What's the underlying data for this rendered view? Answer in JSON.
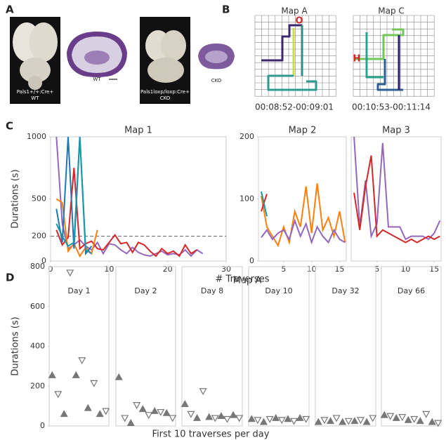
{
  "panel_labels": [
    "A",
    "B",
    "C",
    "D"
  ],
  "panel_a": {
    "brain1_label": "Pals1+/+:Cre+",
    "brain1_genotype": "WT",
    "section1_label": "WT",
    "brain2_label": "Pals1loxp/loxp:Cre+",
    "brain2_genotype": "CKO",
    "section2_label": "CKO"
  },
  "panel_b": {
    "mazes": [
      {
        "title": "Map A",
        "marker": "O",
        "time": "00:08:52-00:09:01"
      },
      {
        "title": "Map C",
        "marker": "H",
        "time": "00:10:53-00:11:14"
      }
    ]
  },
  "chart_data": [
    {
      "type": "line",
      "title": "Map 1",
      "xlabel": "# Traverses",
      "ylabel": "Durations (s)",
      "xlim": [
        0,
        30
      ],
      "xticks": [
        0,
        10,
        20,
        30
      ],
      "ylim": [
        0,
        1000
      ],
      "yticks": [
        0,
        200,
        500,
        1000
      ],
      "reference_line": 200,
      "series": [
        {
          "color": "#9467bd",
          "x": [
            1,
            2,
            3,
            4,
            5,
            6,
            7,
            8,
            9,
            10,
            11,
            12,
            13,
            14,
            15,
            16,
            17,
            18,
            19,
            20,
            21,
            22,
            23,
            24,
            25,
            26
          ],
          "values": [
            1000,
            300,
            100,
            130,
            170,
            120,
            90,
            150,
            60,
            140,
            130,
            90,
            60,
            110,
            70,
            50,
            40,
            60,
            80,
            50,
            60,
            50,
            90,
            40,
            90,
            60
          ]
        },
        {
          "color": "#d62728",
          "x": [
            1,
            2,
            3,
            4,
            5,
            6,
            7,
            8,
            9,
            10,
            11,
            12,
            13,
            14,
            15,
            16,
            17,
            18,
            19,
            20,
            21,
            22,
            23,
            24,
            25
          ],
          "values": [
            250,
            130,
            190,
            750,
            100,
            140,
            160,
            100,
            90,
            150,
            210,
            140,
            150,
            70,
            150,
            130,
            80,
            40,
            100,
            60,
            80,
            40,
            130,
            60,
            90
          ]
        },
        {
          "color": "#ff7f0e",
          "x": [
            1,
            2,
            3,
            4,
            5,
            6,
            7,
            8
          ],
          "values": [
            500,
            470,
            80,
            140,
            40,
            110,
            60,
            250
          ]
        },
        {
          "color": "#1f77b4",
          "x": [
            1,
            2,
            3,
            4,
            5,
            6,
            7
          ],
          "values": [
            420,
            150,
            1000,
            100,
            1000,
            60,
            120
          ]
        },
        {
          "color": "#1a98a8",
          "x": [
            1,
            2,
            3,
            4,
            5,
            6,
            7
          ],
          "values": [
            300,
            200,
            120,
            150,
            1000,
            90,
            60
          ]
        }
      ]
    },
    {
      "type": "line",
      "title": "Map 2",
      "xlim": [
        0.5,
        16.2
      ],
      "xticks": [
        5,
        10,
        15
      ],
      "ylim": [
        0,
        200
      ],
      "yticks": [
        0,
        100,
        200
      ],
      "series": [
        {
          "color": "#ff7f0e",
          "x": [
            1,
            2,
            3,
            4,
            5,
            6,
            7,
            8,
            9,
            10,
            11,
            12,
            13,
            14,
            15,
            16
          ],
          "values": [
            105,
            55,
            40,
            25,
            55,
            30,
            80,
            55,
            120,
            45,
            125,
            50,
            70,
            40,
            80,
            30
          ]
        },
        {
          "color": "#9467bd",
          "x": [
            1,
            2,
            3,
            4,
            5,
            6,
            7,
            8,
            9,
            10,
            11,
            12,
            13,
            14,
            15,
            16
          ],
          "values": [
            38,
            50,
            35,
            45,
            50,
            35,
            65,
            40,
            60,
            30,
            55,
            40,
            30,
            50,
            35,
            30
          ]
        },
        {
          "color": "#d62728",
          "x": [
            1,
            2
          ],
          "values": [
            80,
            108
          ]
        },
        {
          "color": "#1a98a8",
          "x": [
            1,
            2
          ],
          "values": [
            112,
            72
          ]
        }
      ]
    },
    {
      "type": "line",
      "title": "Map 3",
      "xlim": [
        0.5,
        16.2
      ],
      "xticks": [
        5,
        10,
        15
      ],
      "ylim": [
        0,
        200
      ],
      "series": [
        {
          "color": "#9467bd",
          "x": [
            1,
            2,
            3,
            4,
            5,
            6,
            7,
            8,
            9,
            10,
            11,
            12,
            13,
            14,
            15,
            16
          ],
          "values": [
            200,
            55,
            130,
            40,
            60,
            190,
            55,
            55,
            55,
            35,
            40,
            40,
            40,
            35,
            45,
            65
          ]
        },
        {
          "color": "#d62728",
          "x": [
            1,
            2,
            3,
            4,
            5,
            6,
            7,
            8,
            9,
            10,
            11,
            12,
            13,
            14,
            15,
            16
          ],
          "values": [
            110,
            50,
            120,
            170,
            40,
            50,
            45,
            40,
            35,
            30,
            35,
            30,
            35,
            40,
            35,
            40
          ]
        }
      ]
    },
    {
      "type": "strip",
      "title": "Map A",
      "xlabel": "First 10 traverses per day",
      "ylabel": "Durations (s)",
      "ylim": [
        0,
        800
      ],
      "yticks": [
        0,
        200,
        400,
        600,
        800
      ],
      "color": "#777777",
      "markers": [
        "triangle-up-filled",
        "triangle-down-open"
      ],
      "x": [
        1,
        2,
        3,
        4,
        5,
        6,
        7,
        8,
        9,
        10
      ],
      "panels": [
        {
          "title": "Day 1",
          "values": [
            255,
            160,
            60,
            770,
            255,
            330,
            90,
            215,
            60,
            75
          ]
        },
        {
          "title": "Day 2",
          "values": [
            245,
            40,
            15,
            105,
            85,
            55,
            75,
            70,
            65,
            40
          ]
        },
        {
          "title": "Day 8",
          "values": [
            110,
            60,
            40,
            175,
            45,
            40,
            50,
            35,
            55,
            40
          ]
        },
        {
          "title": "Day 10",
          "values": [
            35,
            30,
            20,
            35,
            40,
            30,
            35,
            25,
            40,
            35
          ]
        },
        {
          "title": "Day 32",
          "values": [
            20,
            30,
            25,
            40,
            20,
            25,
            25,
            30,
            20,
            40
          ]
        },
        {
          "title": "Day 66",
          "values": [
            55,
            50,
            40,
            45,
            30,
            35,
            25,
            60,
            20,
            15
          ]
        }
      ]
    }
  ]
}
